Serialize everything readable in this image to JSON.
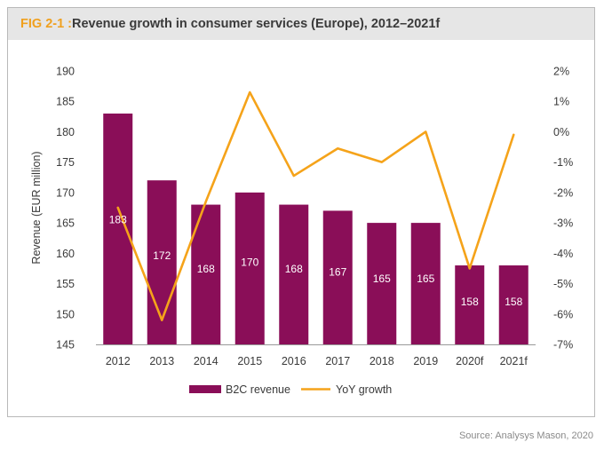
{
  "header": {
    "fig_label": "FIG 2-1 : ",
    "title": "Revenue growth in consumer services (Europe), 2012–2021f"
  },
  "source": "Source: Analysys Mason, 2020",
  "colors": {
    "bar": "#8a0e58",
    "line": "#f5a31a",
    "bar_label": "#ffffff",
    "axis_text": "#3a3a3a",
    "fig_label": "#f0a01e"
  },
  "chart_data": {
    "type": "bar",
    "categories": [
      "2012",
      "2013",
      "2014",
      "2015",
      "2016",
      "2017",
      "2018",
      "2019",
      "2020f",
      "2021f"
    ],
    "series": [
      {
        "name": "B2C revenue",
        "type": "bar",
        "axis": "left",
        "values": [
          183,
          172,
          168,
          170,
          168,
          167,
          165,
          165,
          158,
          158
        ],
        "labels": [
          "183",
          "172",
          "168",
          "170",
          "168",
          "167",
          "165",
          "165",
          "158",
          "158"
        ]
      },
      {
        "name": "YoY growth",
        "type": "line",
        "axis": "right",
        "values": [
          -2.5,
          -6.2,
          -2.3,
          1.3,
          -1.45,
          -0.55,
          -1.0,
          0.0,
          -4.5,
          -0.1
        ]
      }
    ],
    "ylabel": "Revenue (EUR million)",
    "ylim": [
      145,
      190
    ],
    "yticks": [
      "190",
      "185",
      "180",
      "175",
      "170",
      "165",
      "160",
      "155",
      "150",
      "145"
    ],
    "y2lim": [
      -7,
      2
    ],
    "y2ticks": [
      "2%",
      "1%",
      "0%",
      "-1%",
      "-2%",
      "-3%",
      "-4%",
      "-5%",
      "-6%",
      "-7%"
    ],
    "grid": false,
    "legend_position": "bottom"
  }
}
